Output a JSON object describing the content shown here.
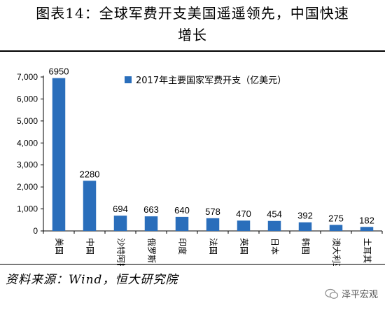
{
  "figure": {
    "title_line1": "图表14：全球军费开支美国遥遥领先，中国快速",
    "title_line2": "增长",
    "source": "资料来源：Wind，恒大研究院",
    "watermark": "泽平宏观"
  },
  "chart_data": {
    "type": "bar",
    "categories": [
      "美国",
      "中国",
      "沙特阿拉伯",
      "俄罗斯",
      "印度",
      "法国",
      "英国",
      "日本",
      "韩国",
      "澳大利亚",
      "土耳其"
    ],
    "series": [
      {
        "name": "2017年主要国家军费开支（亿美元）",
        "values": [
          6950,
          2280,
          694,
          663,
          640,
          578,
          470,
          454,
          392,
          275,
          182
        ]
      }
    ],
    "data_labels": [
      "6950",
      "2280",
      "694",
      "663",
      "640",
      "578",
      "470",
      "454",
      "392",
      "275",
      "182"
    ],
    "y_ticks": [
      0,
      1000,
      2000,
      3000,
      4000,
      5000,
      6000,
      7000
    ],
    "y_tick_labels": [
      "0",
      "1,000",
      "2,000",
      "3,000",
      "4,000",
      "5,000",
      "6,000",
      "7,000"
    ],
    "ylim": [
      0,
      7000
    ],
    "bar_color": "#2a6ebb",
    "grid": false,
    "legend_position": "top-center"
  }
}
